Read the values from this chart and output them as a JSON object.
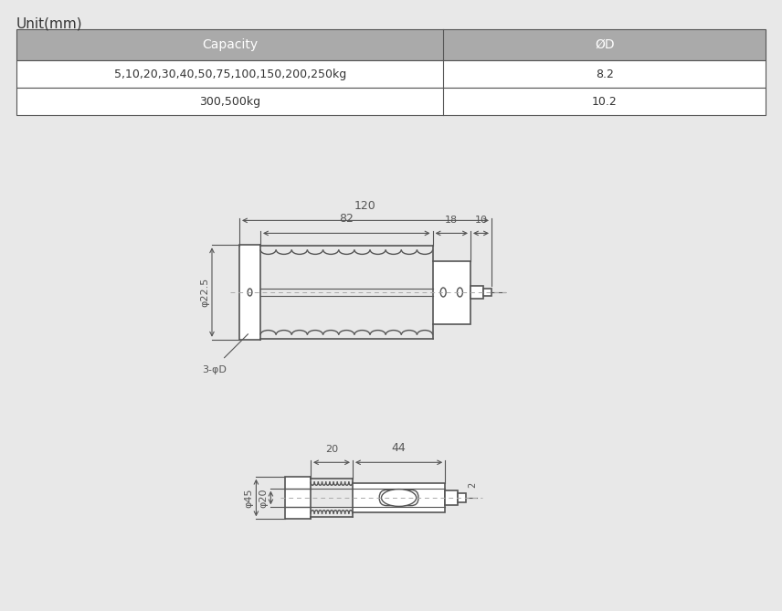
{
  "title": "Unit(mm)",
  "bg_color": "#e8e8e8",
  "table": {
    "header_bg": "#aaaaaa",
    "header_color": "#ffffff",
    "row_bg": "#ffffff",
    "row_color": "#333333",
    "col1_header": "Capacity",
    "col2_header": "ØD",
    "rows": [
      [
        "5,10,20,30,40,50,75,100,150,200,250kg",
        "8.2"
      ],
      [
        "300,500kg",
        "10.2"
      ]
    ]
  },
  "line_color": "#555555",
  "dim_color": "#555555",
  "dash_color": "#888888",
  "center_line_color": "#aaaaaa"
}
